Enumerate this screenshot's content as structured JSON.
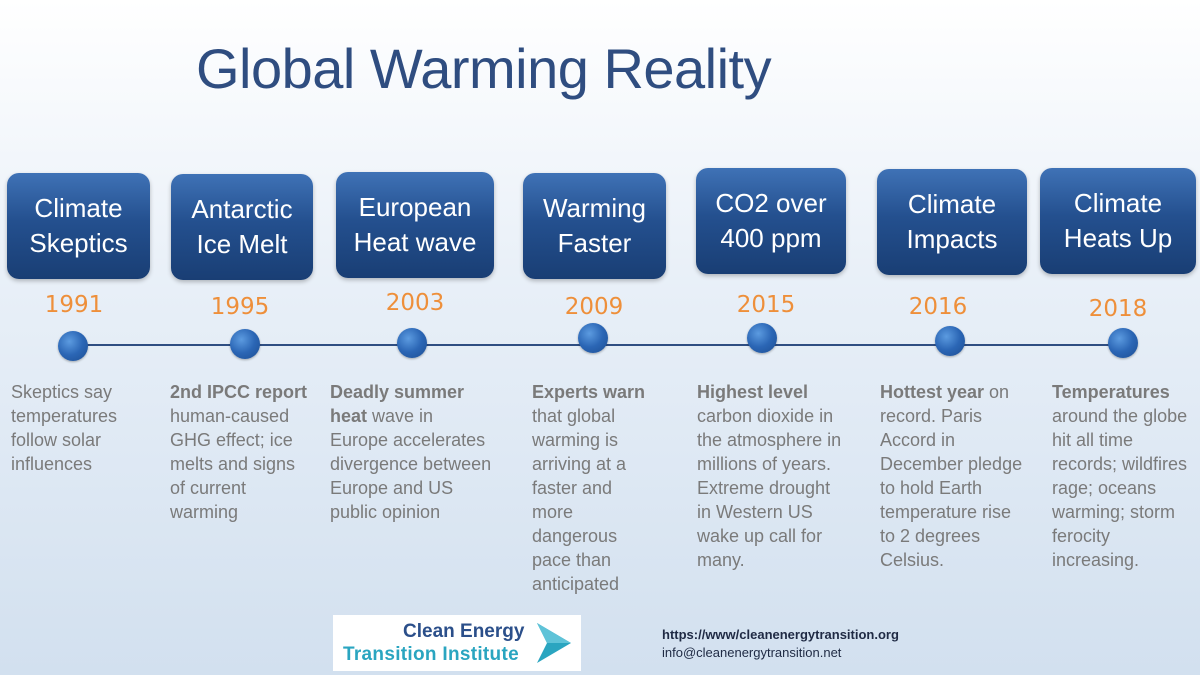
{
  "title": "Global Warming Reality",
  "events": [
    {
      "year": "1991",
      "card_line1": "Climate",
      "card_line2": "Skeptics",
      "desc_bold": "",
      "desc_rest": "Skeptics say temperatures follow solar influences"
    },
    {
      "year": "1995",
      "card_line1": "Antarctic",
      "card_line2": "Ice Melt",
      "desc_bold": "2nd IPCC report",
      "desc_rest": " human-caused GHG effect; ice melts and signs of current warming"
    },
    {
      "year": "2003",
      "card_line1": "European",
      "card_line2": "Heat wave",
      "desc_bold": "Deadly summer heat",
      "desc_rest": " wave in Europe accelerates divergence between Europe and US public opinion"
    },
    {
      "year": "2009",
      "card_line1": "Warming",
      "card_line2": "Faster",
      "desc_bold": "Experts warn",
      "desc_rest": " that global warming is arriving at a faster and more dangerous pace than anticipated"
    },
    {
      "year": "2015",
      "card_line1": "CO2 over",
      "card_line2": "400 ppm",
      "desc_bold": "Highest level",
      "desc_rest": " carbon dioxide in the atmosphere in millions of years. Extreme drought in Western US wake up call for many."
    },
    {
      "year": "2016",
      "card_line1": "Climate",
      "card_line2": "Impacts",
      "desc_bold": "Hottest year",
      "desc_rest": " on record. Paris Accord in December pledge to hold Earth temperature rise to 2 degrees Celsius."
    },
    {
      "year": "2018",
      "card_line1": "Climate",
      "card_line2": "Heats Up",
      "desc_bold": "Temperatures",
      "desc_rest": " around the globe hit all time records; wildfires rage; oceans warming; storm ferocity increasing."
    }
  ],
  "logo": {
    "line1": "Clean Energy",
    "line2": "Transition Institute"
  },
  "contact": {
    "url": "https://www/cleanenergytransition.org",
    "email": "info@cleanenergytransition.net"
  },
  "colors": {
    "title": "#2f4d80",
    "card": "#24508f",
    "year": "#ee8f3a",
    "desc": "#7a7a7a",
    "logo_accent": "#2aa5c0"
  }
}
